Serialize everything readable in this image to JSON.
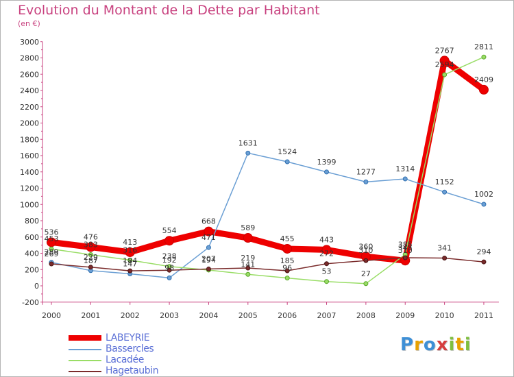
{
  "title": "Evolution du Montant de la Dette par Habitant",
  "unit": "(en €)",
  "chart_data": {
    "type": "line",
    "title": "Evolution du Montant de la Dette par Habitant",
    "subtitle": "(en €)",
    "xlabel": "",
    "ylabel": "",
    "categories": [
      "2000",
      "2001",
      "2002",
      "2003",
      "2004",
      "2005",
      "2006",
      "2007",
      "2008",
      "2009",
      "2010",
      "2011"
    ],
    "ylim": [
      -200,
      3000
    ],
    "yticks": [
      -200,
      0,
      200,
      400,
      600,
      800,
      1000,
      1200,
      1400,
      1600,
      1800,
      2000,
      2200,
      2400,
      2600,
      2800,
      3000
    ],
    "grid": false,
    "legend_position": "bottom-left",
    "series": [
      {
        "name": "LABEYRIE",
        "color": "#ee0000",
        "width": 9,
        "values": [
          536,
          476,
          413,
          554,
          668,
          589,
          455,
          443,
          360,
          310,
          2767,
          2409
        ]
      },
      {
        "name": "Bassercles",
        "color": "#6b9fd4",
        "width": 1.5,
        "values": [
          289,
          187,
          147,
          98,
          471,
          1631,
          1524,
          1399,
          1277,
          1314,
          1152,
          1002
        ]
      },
      {
        "name": "Lacadée",
        "color": "#99dd66",
        "width": 1.5,
        "values": [
          453,
          383,
          316,
          238,
          194,
          141,
          96,
          53,
          27,
          385,
          2594,
          2811
        ]
      },
      {
        "name": "Hagetaubin",
        "color": "#7a2b2b",
        "width": 1.5,
        "values": [
          269,
          229,
          184,
          192,
          207,
          219,
          185,
          272,
          310,
          345,
          341,
          294
        ]
      }
    ]
  },
  "logo": {
    "letters": [
      "P",
      "r",
      "o",
      "x",
      "i",
      "t",
      "i"
    ],
    "colors": [
      "#3d8fd6",
      "#e8a100",
      "#3d8fd6",
      "#d63d3d",
      "#7fbf3f",
      "#e8a100",
      "#7fbf3f"
    ]
  }
}
